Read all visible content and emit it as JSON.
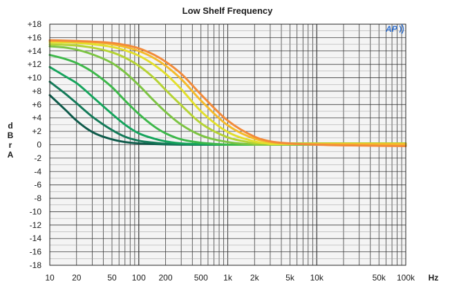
{
  "chart_data": {
    "type": "line",
    "title": "Low Shelf Frequency",
    "xlabel": "Hz",
    "ylabel": "dBrA",
    "x_scale": "log",
    "xlim": [
      10,
      100000
    ],
    "ylim": [
      -18,
      18
    ],
    "grid": true,
    "legend": "none",
    "x_tick_labels": [
      "10",
      "20",
      "50",
      "100",
      "200",
      "500",
      "1k",
      "2k",
      "5k",
      "10k",
      "50k",
      "100k"
    ],
    "x_tick_values": [
      10,
      20,
      50,
      100,
      200,
      500,
      1000,
      2000,
      5000,
      10000,
      50000,
      100000
    ],
    "y_tick_labels": [
      "+18",
      "+16",
      "+14",
      "+12",
      "+10",
      "+8",
      "+6",
      "+4",
      "+2",
      "0",
      "-2",
      "-4",
      "-6",
      "-8",
      "-10",
      "-12",
      "-14",
      "-16",
      "-18"
    ],
    "y_tick_values": [
      18,
      16,
      14,
      12,
      10,
      8,
      6,
      4,
      2,
      0,
      -2,
      -4,
      -6,
      -8,
      -10,
      -12,
      -14,
      -16,
      -18
    ],
    "series": [
      {
        "color": "#0e5a4a",
        "x": [
          10,
          15,
          20,
          30,
          50,
          70,
          100,
          150,
          200,
          500
        ],
        "y": [
          7.4,
          5.2,
          3.6,
          1.9,
          0.8,
          0.4,
          0.2,
          0.1,
          0.05,
          0
        ]
      },
      {
        "color": "#137a58",
        "x": [
          10,
          15,
          20,
          30,
          50,
          70,
          100,
          150,
          200,
          300,
          500
        ],
        "y": [
          9.4,
          7.6,
          6.2,
          4.2,
          2.2,
          1.2,
          0.6,
          0.3,
          0.15,
          0.07,
          0
        ]
      },
      {
        "color": "#15a45c",
        "x": [
          10,
          15,
          20,
          30,
          50,
          70,
          100,
          150,
          200,
          300,
          500,
          1000
        ],
        "y": [
          11.6,
          10.2,
          9.2,
          7.2,
          4.6,
          3.0,
          1.7,
          0.9,
          0.5,
          0.2,
          0.1,
          0
        ]
      },
      {
        "color": "#3db84a",
        "x": [
          10,
          15,
          20,
          30,
          50,
          70,
          100,
          150,
          200,
          300,
          500,
          1000
        ],
        "y": [
          13.4,
          12.8,
          12.2,
          10.9,
          8.6,
          6.6,
          4.6,
          2.7,
          1.7,
          0.8,
          0.3,
          0
        ]
      },
      {
        "color": "#7cc443",
        "x": [
          10,
          15,
          20,
          30,
          50,
          70,
          100,
          150,
          200,
          300,
          500,
          1000,
          2000
        ],
        "y": [
          14.7,
          14.5,
          14.2,
          13.5,
          12.2,
          10.8,
          8.9,
          6.5,
          4.9,
          3.0,
          1.4,
          0.4,
          0
        ]
      },
      {
        "color": "#b5d334",
        "x": [
          10,
          20,
          30,
          50,
          70,
          100,
          150,
          200,
          300,
          500,
          1000,
          2000
        ],
        "y": [
          15.0,
          14.8,
          14.5,
          13.8,
          13.0,
          11.8,
          9.9,
          8.2,
          5.9,
          3.2,
          1.1,
          0.2
        ]
      },
      {
        "color": "#e3df2c",
        "x": [
          10,
          20,
          30,
          50,
          70,
          100,
          150,
          200,
          300,
          500,
          1000,
          2000,
          3000
        ],
        "y": [
          15.3,
          15.2,
          15.0,
          14.6,
          14.1,
          13.3,
          11.9,
          10.6,
          8.3,
          5.0,
          1.9,
          0.5,
          0.1
        ]
      },
      {
        "color": "#f5bb2a",
        "x": [
          10,
          20,
          30,
          50,
          70,
          100,
          150,
          200,
          300,
          500,
          1000,
          2000,
          3000,
          5000
        ],
        "y": [
          15.5,
          15.4,
          15.3,
          15.0,
          14.6,
          14.0,
          12.9,
          11.8,
          9.8,
          6.6,
          2.9,
          0.9,
          0.4,
          0.1
        ]
      },
      {
        "color": "#f28a3a",
        "x": [
          10,
          20,
          30,
          50,
          70,
          100,
          150,
          200,
          300,
          500,
          1000,
          2000,
          3000,
          5000,
          10000,
          100000
        ],
        "y": [
          15.6,
          15.5,
          15.4,
          15.2,
          14.9,
          14.4,
          13.4,
          12.4,
          10.6,
          7.5,
          3.6,
          1.2,
          0.5,
          0.2,
          0,
          -0.2
        ]
      }
    ]
  }
}
